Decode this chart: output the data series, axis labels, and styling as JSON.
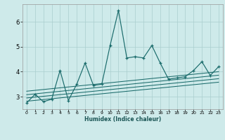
{
  "xlabel": "Humidex (Indice chaleur)",
  "bg_color": "#ceeaea",
  "grid_color": "#aacece",
  "line_color": "#1a6b6b",
  "xlim": [
    -0.5,
    23.5
  ],
  "ylim": [
    2.5,
    6.7
  ],
  "xticks": [
    0,
    1,
    2,
    3,
    4,
    5,
    6,
    7,
    8,
    9,
    10,
    11,
    12,
    13,
    14,
    15,
    16,
    17,
    18,
    19,
    20,
    21,
    22,
    23
  ],
  "yticks": [
    3,
    4,
    5,
    6
  ],
  "main_x": [
    0,
    1,
    2,
    3,
    4,
    5,
    6,
    7,
    8,
    9,
    10,
    11,
    12,
    13,
    14,
    15,
    16,
    17,
    18,
    19,
    20,
    21,
    22,
    23
  ],
  "main_y": [
    2.75,
    3.1,
    2.8,
    2.9,
    4.05,
    2.85,
    3.5,
    4.35,
    3.45,
    3.5,
    5.05,
    6.45,
    4.55,
    4.6,
    4.55,
    5.05,
    4.35,
    3.7,
    3.75,
    3.8,
    4.05,
    4.4,
    3.85,
    4.2
  ],
  "trends": [
    {
      "x": [
        0,
        23
      ],
      "y": [
        2.82,
        3.58
      ]
    },
    {
      "x": [
        0,
        23
      ],
      "y": [
        2.95,
        3.72
      ]
    },
    {
      "x": [
        0,
        23
      ],
      "y": [
        3.08,
        3.86
      ]
    },
    {
      "x": [
        0,
        23
      ],
      "y": [
        3.22,
        4.0
      ]
    }
  ]
}
